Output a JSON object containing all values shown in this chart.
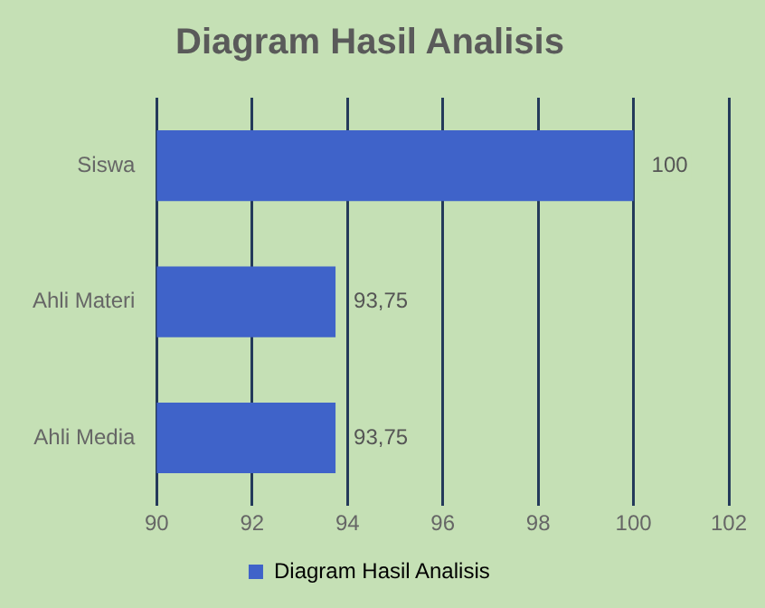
{
  "chart_data": {
    "type": "bar",
    "orientation": "horizontal",
    "title": "Diagram Hasil Analisis",
    "categories": [
      "Siswa",
      "Ahli Materi",
      "Ahli Media"
    ],
    "series": [
      {
        "name": "Diagram Hasil Analisis",
        "color": "#3f63c9",
        "values": [
          100,
          93.75,
          93.75
        ],
        "value_labels": [
          "100",
          "93,75",
          "93,75"
        ]
      }
    ],
    "xlim": [
      90,
      102
    ],
    "xticks": [
      90,
      92,
      94,
      96,
      98,
      100,
      102
    ],
    "grid": "x",
    "legend": "bottom"
  }
}
